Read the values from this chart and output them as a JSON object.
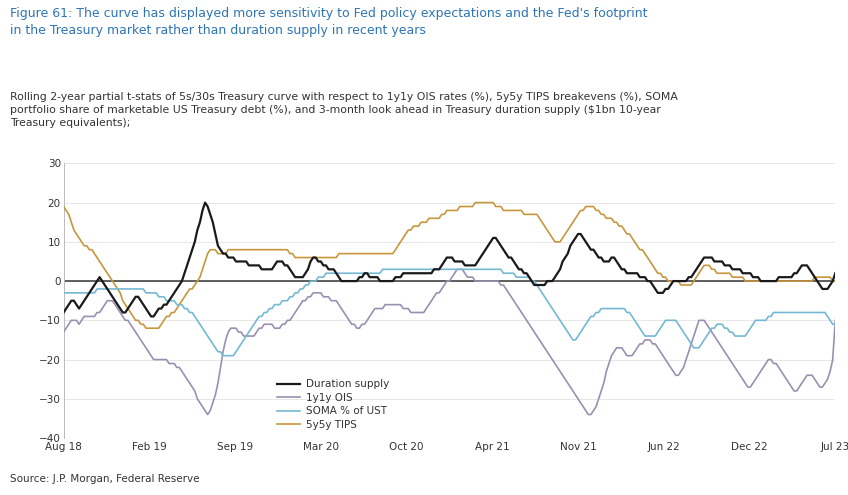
{
  "title_line1": "Figure 61: The curve has displayed more sensitivity to Fed policy expectations and the Fed's footprint",
  "title_line2": "in the Treasury market rather than duration supply in recent years",
  "subtitle": "Rolling 2-year partial t-stats of 5s/30s Treasury curve with respect to 1y1y OIS rates (%), 5y5y TIPS breakevens (%), SOMA\nportfolio share of marketable US Treasury debt (%), and 3-month look ahead in Treasury duration supply ($1bn 10-year\nTreasury equivalents);",
  "source": "Source: J.P. Morgan, Federal Reserve",
  "title_color": "#2E75B6",
  "subtitle_color": "#333333",
  "source_color": "#333333",
  "background_color": "#FFFFFF",
  "ylim": [
    -40,
    30
  ],
  "yticks": [
    -40,
    -30,
    -20,
    -10,
    0,
    10,
    20,
    30
  ],
  "xtick_labels": [
    "Aug 18",
    "Feb 19",
    "Sep 19",
    "Mar 20",
    "Oct 20",
    "Apr 21",
    "Nov 21",
    "Jun 22",
    "Dec 22",
    "Jul 23"
  ],
  "line_colors": {
    "duration_supply": "#1a1a1a",
    "ois": "#9B8FB0",
    "soma": "#74B8D4",
    "tips": "#C8963C"
  },
  "line_widths": {
    "duration_supply": 1.6,
    "ois": 1.2,
    "soma": 1.2,
    "tips": 1.2
  },
  "duration_supply": [
    -8,
    -7,
    -6,
    -5,
    -5,
    -6,
    -7,
    -6,
    -5,
    -4,
    -3,
    -2,
    -1,
    0,
    1,
    0,
    -1,
    -2,
    -3,
    -4,
    -5,
    -6,
    -7,
    -8,
    -8,
    -7,
    -6,
    -5,
    -4,
    -4,
    -5,
    -6,
    -7,
    -8,
    -9,
    -9,
    -8,
    -7,
    -7,
    -6,
    -6,
    -5,
    -4,
    -3,
    -2,
    -1,
    0,
    2,
    4,
    6,
    8,
    10,
    13,
    15,
    18,
    20,
    19,
    17,
    15,
    12,
    9,
    8,
    7,
    7,
    6,
    6,
    6,
    5,
    5,
    5,
    5,
    5,
    4,
    4,
    4,
    4,
    4,
    3,
    3,
    3,
    3,
    3,
    4,
    5,
    5,
    5,
    4,
    4,
    3,
    2,
    1,
    1,
    1,
    1,
    2,
    3,
    5,
    6,
    6,
    5,
    5,
    4,
    4,
    3,
    3,
    3,
    2,
    1,
    0,
    0,
    0,
    0,
    0,
    0,
    0,
    1,
    1,
    2,
    2,
    1,
    1,
    1,
    1,
    0,
    0,
    0,
    0,
    0,
    0,
    1,
    1,
    1,
    2,
    2,
    2,
    2,
    2,
    2,
    2,
    2,
    2,
    2,
    2,
    2,
    3,
    3,
    3,
    4,
    5,
    6,
    6,
    6,
    5,
    5,
    5,
    5,
    4,
    4,
    4,
    4,
    4,
    5,
    6,
    7,
    8,
    9,
    10,
    11,
    11,
    10,
    9,
    8,
    7,
    6,
    6,
    5,
    4,
    3,
    3,
    2,
    2,
    1,
    0,
    -1,
    -1,
    -1,
    -1,
    -1,
    0,
    0,
    0,
    1,
    2,
    3,
    5,
    6,
    7,
    9,
    10,
    11,
    12,
    12,
    11,
    10,
    9,
    8,
    8,
    7,
    6,
    6,
    5,
    5,
    5,
    6,
    6,
    5,
    4,
    3,
    3,
    2,
    2,
    2,
    2,
    2,
    1,
    1,
    1,
    0,
    0,
    -1,
    -2,
    -3,
    -3,
    -3,
    -2,
    -2,
    -1,
    0,
    0,
    0,
    0,
    0,
    0,
    1,
    1,
    2,
    3,
    4,
    5,
    6,
    6,
    6,
    6,
    5,
    5,
    5,
    5,
    4,
    4,
    4,
    3,
    3,
    3,
    3,
    2,
    2,
    2,
    2,
    1,
    1,
    1,
    0,
    0,
    0,
    0,
    0,
    0,
    0,
    1,
    1,
    1,
    1,
    1,
    1,
    2,
    2,
    3,
    4,
    4,
    4,
    3,
    2,
    1,
    0,
    -1,
    -2,
    -2,
    -2,
    -1,
    0,
    2
  ],
  "ois": [
    -13,
    -12,
    -11,
    -10,
    -10,
    -10,
    -11,
    -10,
    -9,
    -9,
    -9,
    -9,
    -9,
    -8,
    -8,
    -7,
    -6,
    -5,
    -5,
    -5,
    -6,
    -7,
    -8,
    -9,
    -10,
    -10,
    -11,
    -12,
    -13,
    -14,
    -15,
    -16,
    -17,
    -18,
    -19,
    -20,
    -20,
    -20,
    -20,
    -20,
    -20,
    -21,
    -21,
    -21,
    -22,
    -22,
    -23,
    -24,
    -25,
    -26,
    -27,
    -28,
    -30,
    -31,
    -32,
    -33,
    -34,
    -33,
    -31,
    -29,
    -26,
    -22,
    -18,
    -15,
    -13,
    -12,
    -12,
    -12,
    -13,
    -13,
    -14,
    -14,
    -14,
    -14,
    -14,
    -13,
    -12,
    -12,
    -11,
    -11,
    -11,
    -11,
    -12,
    -12,
    -12,
    -11,
    -11,
    -10,
    -10,
    -9,
    -8,
    -7,
    -6,
    -5,
    -5,
    -4,
    -4,
    -3,
    -3,
    -3,
    -3,
    -4,
    -4,
    -4,
    -5,
    -5,
    -5,
    -6,
    -7,
    -8,
    -9,
    -10,
    -11,
    -11,
    -12,
    -12,
    -11,
    -11,
    -10,
    -9,
    -8,
    -7,
    -7,
    -7,
    -7,
    -6,
    -6,
    -6,
    -6,
    -6,
    -6,
    -6,
    -7,
    -7,
    -7,
    -8,
    -8,
    -8,
    -8,
    -8,
    -8,
    -7,
    -6,
    -5,
    -4,
    -3,
    -3,
    -2,
    -1,
    0,
    0,
    1,
    2,
    3,
    3,
    3,
    2,
    1,
    1,
    1,
    0,
    0,
    0,
    0,
    0,
    0,
    0,
    0,
    0,
    0,
    -1,
    -1,
    -2,
    -3,
    -4,
    -5,
    -6,
    -7,
    -8,
    -9,
    -10,
    -11,
    -12,
    -13,
    -14,
    -15,
    -16,
    -17,
    -18,
    -19,
    -20,
    -21,
    -22,
    -23,
    -24,
    -25,
    -26,
    -27,
    -28,
    -29,
    -30,
    -31,
    -32,
    -33,
    -34,
    -34,
    -33,
    -32,
    -30,
    -28,
    -26,
    -23,
    -21,
    -19,
    -18,
    -17,
    -17,
    -17,
    -18,
    -19,
    -19,
    -19,
    -18,
    -17,
    -16,
    -16,
    -15,
    -15,
    -15,
    -16,
    -16,
    -17,
    -18,
    -19,
    -20,
    -21,
    -22,
    -23,
    -24,
    -24,
    -23,
    -22,
    -20,
    -18,
    -16,
    -14,
    -12,
    -10,
    -10,
    -10,
    -11,
    -12,
    -13,
    -14,
    -15,
    -16,
    -17,
    -18,
    -19,
    -20,
    -21,
    -22,
    -23,
    -24,
    -25,
    -26,
    -27,
    -27,
    -26,
    -25,
    -24,
    -23,
    -22,
    -21,
    -20,
    -20,
    -21,
    -21,
    -22,
    -23,
    -24,
    -25,
    -26,
    -27,
    -28,
    -28,
    -27,
    -26,
    -25,
    -24,
    -24,
    -24,
    -25,
    -26,
    -27,
    -27,
    -26,
    -25,
    -23,
    -20,
    -10
  ],
  "soma": [
    -3,
    -3,
    -3,
    -3,
    -3,
    -3,
    -3,
    -3,
    -3,
    -3,
    -3,
    -3,
    -3,
    -2,
    -2,
    -2,
    -2,
    -2,
    -2,
    -2,
    -2,
    -2,
    -2,
    -2,
    -2,
    -2,
    -2,
    -2,
    -2,
    -2,
    -2,
    -2,
    -3,
    -3,
    -3,
    -3,
    -3,
    -4,
    -4,
    -4,
    -5,
    -5,
    -5,
    -5,
    -6,
    -6,
    -6,
    -7,
    -7,
    -8,
    -8,
    -9,
    -10,
    -11,
    -12,
    -13,
    -14,
    -15,
    -16,
    -17,
    -18,
    -18,
    -19,
    -19,
    -19,
    -19,
    -19,
    -18,
    -17,
    -16,
    -15,
    -14,
    -13,
    -12,
    -11,
    -10,
    -9,
    -9,
    -8,
    -8,
    -7,
    -7,
    -6,
    -6,
    -6,
    -5,
    -5,
    -5,
    -4,
    -4,
    -3,
    -3,
    -2,
    -2,
    -1,
    -1,
    0,
    0,
    0,
    1,
    1,
    1,
    2,
    2,
    2,
    2,
    2,
    2,
    2,
    2,
    2,
    2,
    2,
    2,
    2,
    2,
    2,
    2,
    2,
    2,
    2,
    2,
    2,
    2,
    3,
    3,
    3,
    3,
    3,
    3,
    3,
    3,
    3,
    3,
    3,
    3,
    3,
    3,
    3,
    3,
    3,
    3,
    3,
    3,
    3,
    3,
    3,
    3,
    3,
    3,
    3,
    3,
    3,
    3,
    3,
    3,
    3,
    3,
    3,
    3,
    3,
    3,
    3,
    3,
    3,
    3,
    3,
    3,
    3,
    3,
    3,
    2,
    2,
    2,
    2,
    2,
    1,
    1,
    1,
    1,
    1,
    1,
    0,
    0,
    -1,
    -2,
    -3,
    -4,
    -5,
    -6,
    -7,
    -8,
    -9,
    -10,
    -11,
    -12,
    -13,
    -14,
    -15,
    -15,
    -14,
    -13,
    -12,
    -11,
    -10,
    -9,
    -9,
    -8,
    -8,
    -7,
    -7,
    -7,
    -7,
    -7,
    -7,
    -7,
    -7,
    -7,
    -7,
    -8,
    -8,
    -9,
    -10,
    -11,
    -12,
    -13,
    -14,
    -14,
    -14,
    -14,
    -14,
    -13,
    -12,
    -11,
    -10,
    -10,
    -10,
    -10,
    -10,
    -11,
    -12,
    -13,
    -14,
    -15,
    -16,
    -17,
    -17,
    -17,
    -16,
    -15,
    -14,
    -13,
    -12,
    -12,
    -11,
    -11,
    -11,
    -12,
    -12,
    -13,
    -13,
    -14,
    -14,
    -14,
    -14,
    -14,
    -13,
    -12,
    -11,
    -10,
    -10,
    -10,
    -10,
    -10,
    -9,
    -9,
    -8,
    -8,
    -8,
    -8,
    -8,
    -8,
    -8,
    -8,
    -8,
    -8,
    -8,
    -8,
    -8,
    -8,
    -8,
    -8,
    -8,
    -8,
    -8,
    -8,
    -8,
    -9,
    -10,
    -11,
    -11
  ],
  "tips": [
    19,
    18,
    17,
    15,
    13,
    12,
    11,
    10,
    9,
    9,
    8,
    8,
    7,
    6,
    5,
    4,
    3,
    2,
    1,
    0,
    -1,
    -2,
    -3,
    -5,
    -6,
    -7,
    -8,
    -9,
    -10,
    -10,
    -11,
    -11,
    -12,
    -12,
    -12,
    -12,
    -12,
    -12,
    -11,
    -10,
    -9,
    -9,
    -8,
    -8,
    -7,
    -6,
    -5,
    -4,
    -3,
    -2,
    -2,
    -1,
    0,
    1,
    3,
    5,
    7,
    8,
    8,
    8,
    7,
    7,
    7,
    7,
    8,
    8,
    8,
    8,
    8,
    8,
    8,
    8,
    8,
    8,
    8,
    8,
    8,
    8,
    8,
    8,
    8,
    8,
    8,
    8,
    8,
    8,
    8,
    8,
    7,
    7,
    6,
    6,
    6,
    6,
    6,
    6,
    6,
    6,
    6,
    6,
    6,
    6,
    6,
    6,
    6,
    6,
    6,
    7,
    7,
    7,
    7,
    7,
    7,
    7,
    7,
    7,
    7,
    7,
    7,
    7,
    7,
    7,
    7,
    7,
    7,
    7,
    7,
    7,
    7,
    8,
    9,
    10,
    11,
    12,
    13,
    13,
    14,
    14,
    14,
    15,
    15,
    15,
    16,
    16,
    16,
    16,
    16,
    17,
    17,
    18,
    18,
    18,
    18,
    18,
    19,
    19,
    19,
    19,
    19,
    19,
    20,
    20,
    20,
    20,
    20,
    20,
    20,
    20,
    19,
    19,
    19,
    18,
    18,
    18,
    18,
    18,
    18,
    18,
    18,
    17,
    17,
    17,
    17,
    17,
    17,
    16,
    15,
    14,
    13,
    12,
    11,
    10,
    10,
    10,
    11,
    12,
    13,
    14,
    15,
    16,
    17,
    18,
    18,
    19,
    19,
    19,
    19,
    18,
    18,
    17,
    17,
    16,
    16,
    16,
    15,
    15,
    14,
    14,
    13,
    12,
    12,
    11,
    10,
    9,
    8,
    8,
    7,
    6,
    5,
    4,
    3,
    2,
    2,
    1,
    1,
    0,
    0,
    0,
    0,
    0,
    -1,
    -1,
    -1,
    -1,
    -1,
    0,
    1,
    2,
    3,
    4,
    4,
    4,
    3,
    3,
    2,
    2,
    2,
    2,
    2,
    2,
    1,
    1,
    1,
    1,
    1,
    0,
    0,
    0,
    0,
    0,
    0,
    0,
    0,
    0,
    0,
    0,
    0,
    0,
    0,
    0,
    0,
    0,
    0,
    0,
    0,
    0,
    0,
    0,
    0,
    0,
    0,
    0,
    1,
    1,
    1,
    1,
    1,
    1,
    1,
    0,
    0
  ]
}
